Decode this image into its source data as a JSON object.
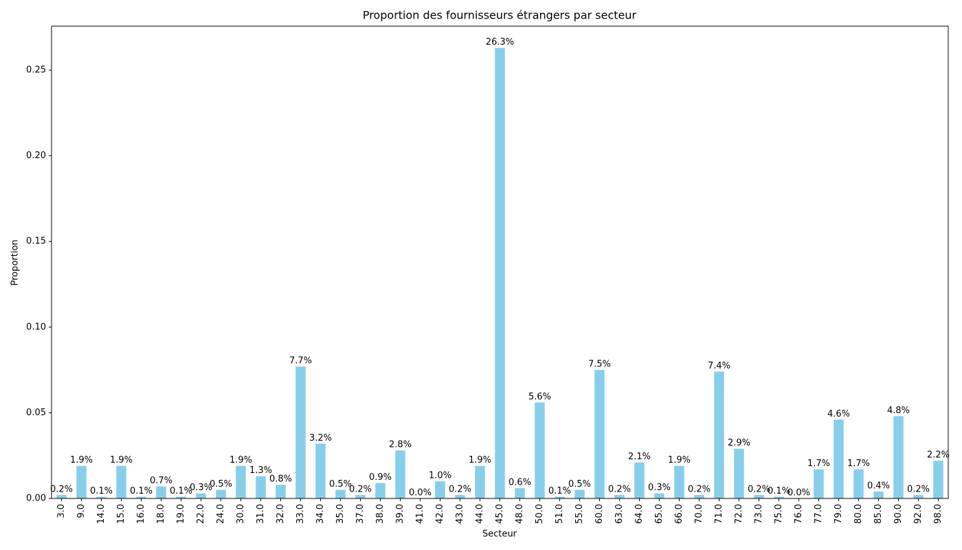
{
  "chart_data": {
    "type": "bar",
    "title": "Proportion des fournisseurs étrangers par secteur",
    "x_label": "Secteur",
    "y_label": "Proportion",
    "categories": [
      "3.0",
      "9.0",
      "14.0",
      "15.0",
      "16.0",
      "18.0",
      "19.0",
      "22.0",
      "24.0",
      "30.0",
      "31.0",
      "32.0",
      "33.0",
      "34.0",
      "35.0",
      "37.0",
      "38.0",
      "39.0",
      "41.0",
      "42.0",
      "43.0",
      "44.0",
      "45.0",
      "48.0",
      "50.0",
      "51.0",
      "55.0",
      "60.0",
      "63.0",
      "64.0",
      "65.0",
      "66.0",
      "70.0",
      "71.0",
      "72.0",
      "73.0",
      "75.0",
      "76.0",
      "77.0",
      "79.0",
      "80.0",
      "85.0",
      "90.0",
      "92.0",
      "98.0"
    ],
    "values": [
      0.002,
      0.019,
      0.001,
      0.019,
      0.001,
      0.007,
      0.001,
      0.003,
      0.005,
      0.019,
      0.013,
      0.008,
      0.077,
      0.032,
      0.005,
      0.002,
      0.009,
      0.028,
      0.0,
      0.01,
      0.002,
      0.019,
      0.263,
      0.006,
      0.056,
      0.001,
      0.005,
      0.075,
      0.002,
      0.021,
      0.003,
      0.019,
      0.002,
      0.074,
      0.029,
      0.002,
      0.001,
      0.0,
      0.017,
      0.046,
      0.017,
      0.004,
      0.048,
      0.002,
      0.022
    ],
    "value_labels": [
      "0.2%",
      "1.9%",
      "0.1%",
      "1.9%",
      "0.1%",
      "0.7%",
      "0.1%",
      "0.3%",
      "0.5%",
      "1.9%",
      "1.3%",
      "0.8%",
      "7.7%",
      "3.2%",
      "0.5%",
      "0.2%",
      "0.9%",
      "2.8%",
      "0.0%",
      "1.0%",
      "0.2%",
      "1.9%",
      "26.3%",
      "0.6%",
      "5.6%",
      "0.1%",
      "0.5%",
      "7.5%",
      "0.2%",
      "2.1%",
      "0.3%",
      "1.9%",
      "0.2%",
      "7.4%",
      "2.9%",
      "0.2%",
      "0.1%",
      "0.0%",
      "1.7%",
      "4.6%",
      "1.7%",
      "0.4%",
      "4.8%",
      "0.2%",
      "2.2%"
    ],
    "color": "#87ceeb",
    "ylim": [
      0,
      0.2757
    ],
    "yticks": [
      {
        "value": 0,
        "label": "0.00"
      },
      {
        "value": 0.05,
        "label": "0.05"
      },
      {
        "value": 0.1,
        "label": "0.10"
      },
      {
        "value": 0.15,
        "label": "0.15"
      },
      {
        "value": 0.2,
        "label": "0.20"
      },
      {
        "value": 0.25,
        "label": "0.25"
      }
    ],
    "grid": false
  }
}
